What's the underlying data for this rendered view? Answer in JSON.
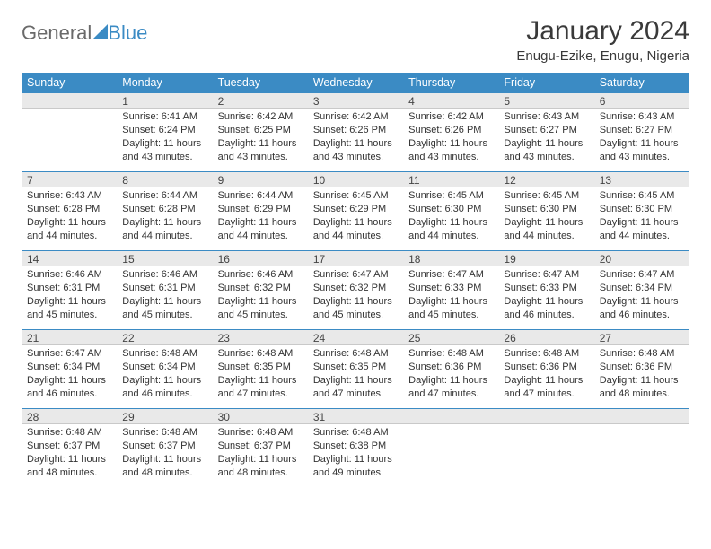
{
  "logo": {
    "text1": "General",
    "text2": "Blue"
  },
  "title": "January 2024",
  "location": "Enugu-Ezike, Enugu, Nigeria",
  "colors": {
    "header_bg": "#3b8bc4",
    "header_text": "#ffffff",
    "daynum_bg": "#e9e9e9",
    "border_accent": "#3b8bc4",
    "body_text": "#333333"
  },
  "weekdays": [
    "Sunday",
    "Monday",
    "Tuesday",
    "Wednesday",
    "Thursday",
    "Friday",
    "Saturday"
  ],
  "weeks": [
    [
      {
        "blank": true
      },
      {
        "n": "1",
        "sr": "6:41 AM",
        "ss": "6:24 PM",
        "dl": "11 hours and 43 minutes."
      },
      {
        "n": "2",
        "sr": "6:42 AM",
        "ss": "6:25 PM",
        "dl": "11 hours and 43 minutes."
      },
      {
        "n": "3",
        "sr": "6:42 AM",
        "ss": "6:26 PM",
        "dl": "11 hours and 43 minutes."
      },
      {
        "n": "4",
        "sr": "6:42 AM",
        "ss": "6:26 PM",
        "dl": "11 hours and 43 minutes."
      },
      {
        "n": "5",
        "sr": "6:43 AM",
        "ss": "6:27 PM",
        "dl": "11 hours and 43 minutes."
      },
      {
        "n": "6",
        "sr": "6:43 AM",
        "ss": "6:27 PM",
        "dl": "11 hours and 43 minutes."
      }
    ],
    [
      {
        "n": "7",
        "sr": "6:43 AM",
        "ss": "6:28 PM",
        "dl": "11 hours and 44 minutes."
      },
      {
        "n": "8",
        "sr": "6:44 AM",
        "ss": "6:28 PM",
        "dl": "11 hours and 44 minutes."
      },
      {
        "n": "9",
        "sr": "6:44 AM",
        "ss": "6:29 PM",
        "dl": "11 hours and 44 minutes."
      },
      {
        "n": "10",
        "sr": "6:45 AM",
        "ss": "6:29 PM",
        "dl": "11 hours and 44 minutes."
      },
      {
        "n": "11",
        "sr": "6:45 AM",
        "ss": "6:30 PM",
        "dl": "11 hours and 44 minutes."
      },
      {
        "n": "12",
        "sr": "6:45 AM",
        "ss": "6:30 PM",
        "dl": "11 hours and 44 minutes."
      },
      {
        "n": "13",
        "sr": "6:45 AM",
        "ss": "6:30 PM",
        "dl": "11 hours and 44 minutes."
      }
    ],
    [
      {
        "n": "14",
        "sr": "6:46 AM",
        "ss": "6:31 PM",
        "dl": "11 hours and 45 minutes."
      },
      {
        "n": "15",
        "sr": "6:46 AM",
        "ss": "6:31 PM",
        "dl": "11 hours and 45 minutes."
      },
      {
        "n": "16",
        "sr": "6:46 AM",
        "ss": "6:32 PM",
        "dl": "11 hours and 45 minutes."
      },
      {
        "n": "17",
        "sr": "6:47 AM",
        "ss": "6:32 PM",
        "dl": "11 hours and 45 minutes."
      },
      {
        "n": "18",
        "sr": "6:47 AM",
        "ss": "6:33 PM",
        "dl": "11 hours and 45 minutes."
      },
      {
        "n": "19",
        "sr": "6:47 AM",
        "ss": "6:33 PM",
        "dl": "11 hours and 46 minutes."
      },
      {
        "n": "20",
        "sr": "6:47 AM",
        "ss": "6:34 PM",
        "dl": "11 hours and 46 minutes."
      }
    ],
    [
      {
        "n": "21",
        "sr": "6:47 AM",
        "ss": "6:34 PM",
        "dl": "11 hours and 46 minutes."
      },
      {
        "n": "22",
        "sr": "6:48 AM",
        "ss": "6:34 PM",
        "dl": "11 hours and 46 minutes."
      },
      {
        "n": "23",
        "sr": "6:48 AM",
        "ss": "6:35 PM",
        "dl": "11 hours and 47 minutes."
      },
      {
        "n": "24",
        "sr": "6:48 AM",
        "ss": "6:35 PM",
        "dl": "11 hours and 47 minutes."
      },
      {
        "n": "25",
        "sr": "6:48 AM",
        "ss": "6:36 PM",
        "dl": "11 hours and 47 minutes."
      },
      {
        "n": "26",
        "sr": "6:48 AM",
        "ss": "6:36 PM",
        "dl": "11 hours and 47 minutes."
      },
      {
        "n": "27",
        "sr": "6:48 AM",
        "ss": "6:36 PM",
        "dl": "11 hours and 48 minutes."
      }
    ],
    [
      {
        "n": "28",
        "sr": "6:48 AM",
        "ss": "6:37 PM",
        "dl": "11 hours and 48 minutes."
      },
      {
        "n": "29",
        "sr": "6:48 AM",
        "ss": "6:37 PM",
        "dl": "11 hours and 48 minutes."
      },
      {
        "n": "30",
        "sr": "6:48 AM",
        "ss": "6:37 PM",
        "dl": "11 hours and 48 minutes."
      },
      {
        "n": "31",
        "sr": "6:48 AM",
        "ss": "6:38 PM",
        "dl": "11 hours and 49 minutes."
      },
      {
        "blank": true
      },
      {
        "blank": true
      },
      {
        "blank": true
      }
    ]
  ],
  "labels": {
    "sunrise": "Sunrise: ",
    "sunset": "Sunset: ",
    "daylight": "Daylight: "
  }
}
